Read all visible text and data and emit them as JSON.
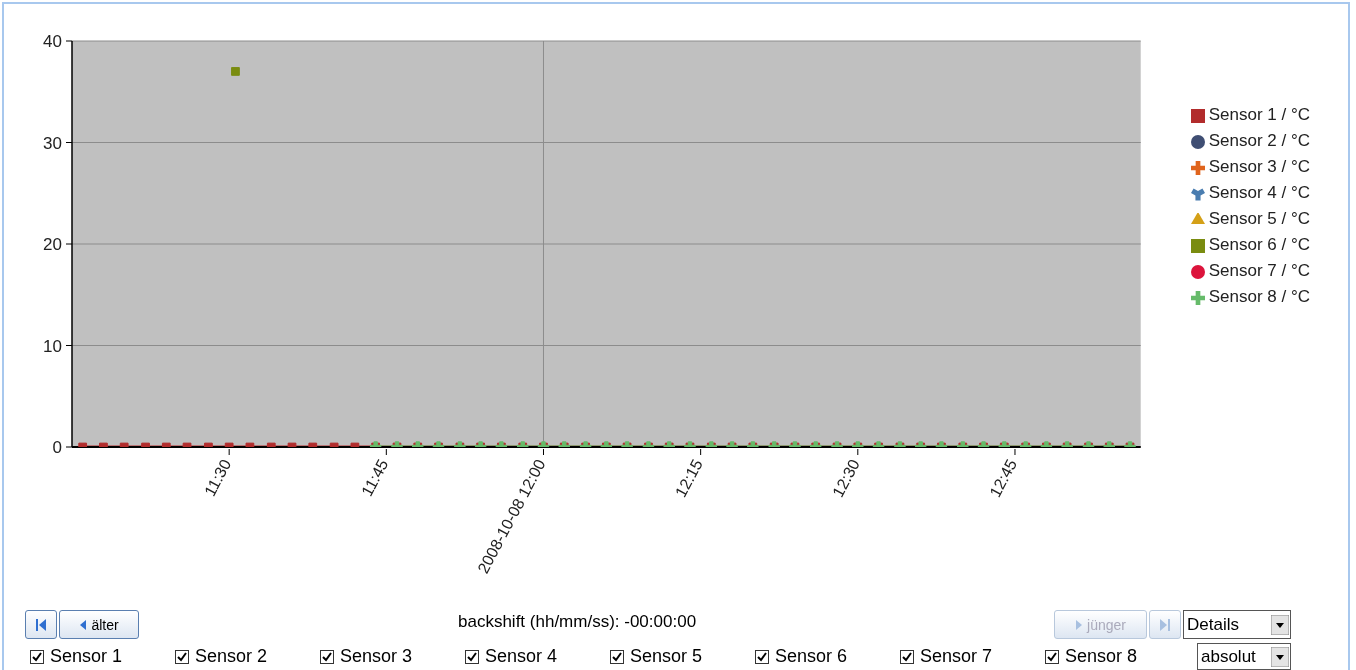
{
  "chart_data": {
    "type": "line",
    "xlim": [
      11.25,
      12.95
    ],
    "ylim": [
      0,
      40
    ],
    "yticks": [
      0,
      10,
      20,
      30,
      40
    ],
    "xticks": [
      {
        "value": 11.5,
        "label": "11:30"
      },
      {
        "value": 11.75,
        "label": "11:45"
      },
      {
        "value": 12,
        "label": "2008-10-08 12:00"
      },
      {
        "value": 12.25,
        "label": "12:15"
      },
      {
        "value": 12.5,
        "label": "12:30"
      },
      {
        "value": 12.75,
        "label": "12:45"
      }
    ],
    "grid": "y",
    "legend": "right",
    "line_style": "solid",
    "ref_lines": [
      {
        "axis": "x",
        "value": 12,
        "color": "#8c8c8c"
      }
    ],
    "series": [
      {
        "name": "Sensor 1 / °C",
        "color": "#b22c2c",
        "marker": "square",
        "x": [
          11.267,
          11.3,
          11.333,
          11.367,
          11.4,
          11.433,
          11.467,
          11.5,
          11.533,
          11.567,
          11.6,
          11.633,
          11.667,
          11.7,
          11.733,
          11.767,
          11.8,
          11.833,
          11.867,
          11.9,
          11.933,
          11.967,
          12,
          12.033,
          12.067,
          12.1,
          12.133,
          12.167,
          12.2,
          12.233,
          12.267,
          12.3,
          12.333,
          12.367,
          12.4,
          12.433,
          12.467,
          12.5,
          12.533,
          12.567,
          12.6,
          12.633,
          12.667,
          12.7,
          12.733,
          12.767,
          12.8,
          12.833,
          12.867,
          12.9,
          12.933
        ],
        "values": [
          0,
          0,
          0,
          0,
          0,
          0,
          0,
          0,
          0,
          0,
          0,
          0,
          0,
          0,
          0,
          0,
          0,
          0,
          0,
          0,
          0,
          0,
          0,
          0,
          0,
          0,
          0,
          0,
          0,
          0,
          0,
          0,
          0,
          0,
          0,
          0,
          0,
          0,
          0,
          0,
          0,
          0,
          0,
          0,
          0,
          0,
          0,
          0,
          0,
          0,
          0
        ]
      },
      {
        "name": "Sensor 2 / °C",
        "color": "#3f4e73",
        "marker": "circle"
      },
      {
        "name": "Sensor 3 / °C",
        "color": "#e0641c",
        "marker": "cross"
      },
      {
        "name": "Sensor 4 / °C",
        "color": "#4a7db0",
        "marker": "star"
      },
      {
        "name": "Sensor 5 / °C",
        "color": "#d4a017",
        "marker": "triangle"
      },
      {
        "name": "Sensor 6 / °C",
        "color": "#7a8c10",
        "marker": "square",
        "x": [
          11.51
        ],
        "values": [
          37
        ]
      },
      {
        "name": "Sensor 7 / °C",
        "color": "#dc143c",
        "marker": "circle"
      },
      {
        "name": "Sensor 8 / °C",
        "color": "#66bb6a",
        "marker": "cross",
        "x": [
          11.733,
          11.767,
          11.8,
          11.833,
          11.867,
          11.9,
          11.933,
          11.967,
          12,
          12.033,
          12.067,
          12.1,
          12.133,
          12.167,
          12.2,
          12.233,
          12.267,
          12.3,
          12.333,
          12.367,
          12.4,
          12.433,
          12.467,
          12.5,
          12.533,
          12.567,
          12.6,
          12.633,
          12.667,
          12.7,
          12.733,
          12.767,
          12.8,
          12.833,
          12.867,
          12.9,
          12.933
        ],
        "values": [
          0,
          0,
          0,
          0,
          0,
          0,
          0,
          0,
          0,
          0,
          0,
          0,
          0,
          0,
          0,
          0,
          0,
          0,
          0,
          0,
          0,
          0,
          0,
          0,
          0,
          0,
          0,
          0,
          0,
          0,
          0,
          0,
          0,
          0,
          0,
          0,
          0
        ]
      }
    ],
    "annotations": [
      "älter",
      "backshift (hh/mm/ss): -00:00:00",
      "jünger",
      "Details",
      "Sensor 1",
      "Sensor 2",
      "Sensor 3",
      "Sensor 4",
      "Sensor 5",
      "Sensor 6",
      "Sensor 7",
      "Sensor 8",
      "absolut"
    ]
  }
}
